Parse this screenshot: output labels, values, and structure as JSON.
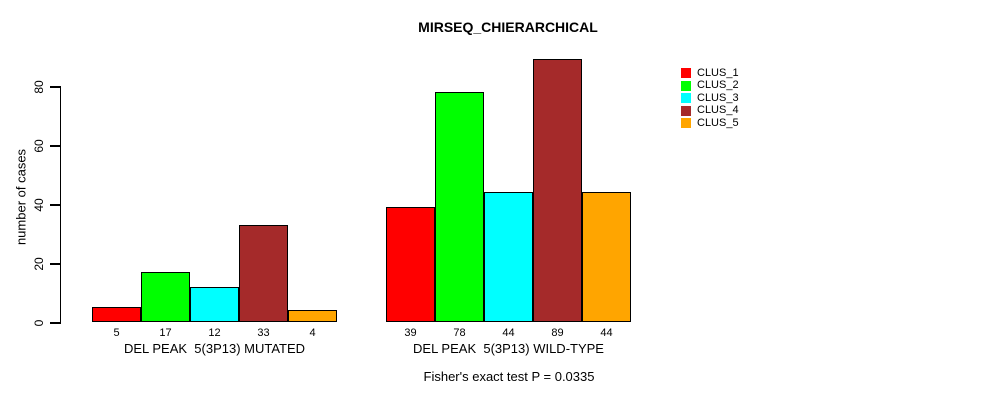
{
  "chart_data": {
    "type": "bar",
    "title": "MIRSEQ_CHIERARCHICAL",
    "ylabel": "number of cases",
    "xlabel": "",
    "yticks": [
      0,
      20,
      40,
      60,
      80
    ],
    "ylim": [
      0,
      89
    ],
    "grid": false,
    "legend_position": "right",
    "series_names": [
      "CLUS_1",
      "CLUS_2",
      "CLUS_3",
      "CLUS_4",
      "CLUS_5"
    ],
    "colors": [
      "#ff0000",
      "#00ff00",
      "#00ffff",
      "#a52a2a",
      "#ffa500"
    ],
    "groups": [
      {
        "label": "DEL PEAK  5(3P13) MUTATED",
        "values": [
          5,
          17,
          12,
          33,
          4
        ]
      },
      {
        "label": "DEL PEAK  5(3P13) WILD-TYPE",
        "values": [
          39,
          78,
          44,
          89,
          44
        ]
      }
    ],
    "bar_value_labels": true,
    "annotation": "Fisher's exact test P = 0.0335"
  }
}
